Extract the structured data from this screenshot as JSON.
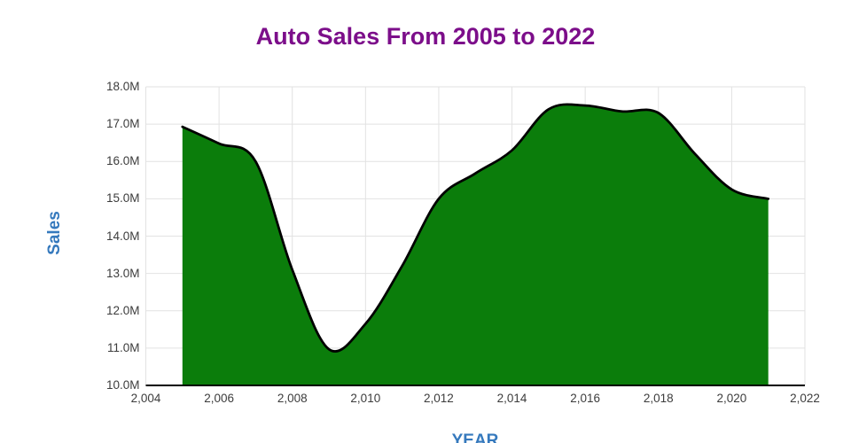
{
  "title": {
    "text": "Auto Sales From 2005 to 2022",
    "color": "#7c0e8a"
  },
  "y_axis": {
    "title": "Sales",
    "title_color": "#3579bd",
    "tick_labels": [
      "18.0M",
      "17.0M",
      "16.0M",
      "15.0M",
      "14.0M",
      "13.0M",
      "12.0M",
      "11.0M",
      "10.0M"
    ]
  },
  "x_axis": {
    "title": "YEAR",
    "title_color": "#3579bd",
    "tick_labels": [
      "2,004",
      "2,006",
      "2,008",
      "2,010",
      "2,012",
      "2,014",
      "2,016",
      "2,018",
      "2,020",
      "2,022"
    ]
  },
  "chart_data": {
    "type": "area",
    "title": "Auto Sales From 2005 to 2022",
    "xlabel": "YEAR",
    "ylabel": "Sales",
    "unit": "millions of vehicles",
    "x": [
      2005,
      2006,
      2007,
      2008,
      2009,
      2010,
      2011,
      2012,
      2013,
      2014,
      2015,
      2016,
      2017,
      2018,
      2019,
      2020,
      2021
    ],
    "values": [
      16.93,
      16.48,
      16.0,
      13.1,
      10.97,
      11.65,
      13.2,
      15.0,
      15.68,
      16.3,
      17.4,
      17.5,
      17.34,
      17.3,
      16.2,
      15.25,
      15.0
    ],
    "xlim": [
      2004,
      2022
    ],
    "ylim": [
      10.0,
      18.0
    ],
    "x_tick_step": 2,
    "y_tick_step": 1.0,
    "grid": true,
    "smoothing": true,
    "legend": "none",
    "area_color": "#0b7d0b",
    "line_color": "#000000"
  },
  "style": {
    "grid_color": "#e2e2e2",
    "axis_line_color": "#000000",
    "tick_label_color": "#3c3c3c",
    "background": "#ffffff"
  }
}
